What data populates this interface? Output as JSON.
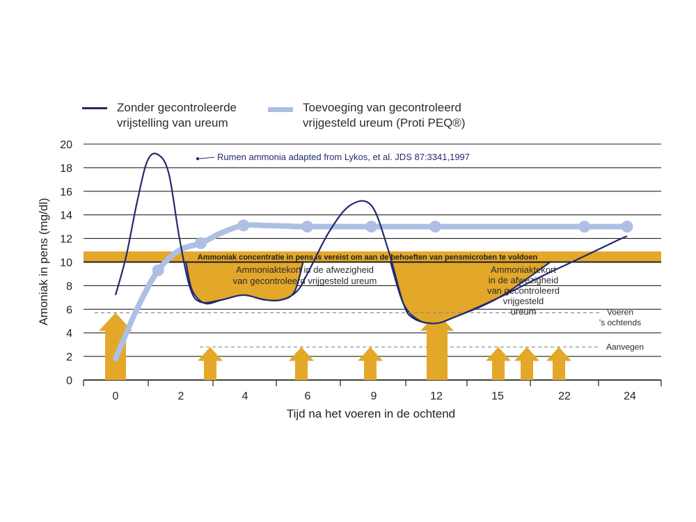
{
  "chart_data": {
    "type": "line",
    "xlabel": "Tijd na het voeren in de ochtend",
    "ylabel": "Amoniak in pens (mg/dl)",
    "ylim": [
      0,
      20
    ],
    "yticks": [
      0,
      2,
      4,
      6,
      8,
      10,
      12,
      14,
      16,
      18,
      20
    ],
    "categories": [
      "0",
      "2",
      "4",
      "6",
      "9",
      "12",
      "15",
      "22",
      "24"
    ],
    "grid": true,
    "legend_position": "top",
    "series": [
      {
        "name": "Zonder gecontroleerde\nvrijstelling van ureum",
        "color": "#232a6b",
        "points": [
          [
            0,
            7.2
          ],
          [
            0.5,
            10.5
          ],
          [
            1,
            15
          ],
          [
            1.5,
            18.6
          ],
          [
            2,
            19.1
          ],
          [
            2.5,
            17.5
          ],
          [
            3,
            12
          ],
          [
            3.5,
            7.8
          ],
          [
            4,
            6.6
          ],
          [
            5,
            6.8
          ],
          [
            6,
            7.2
          ],
          [
            7,
            6.8
          ],
          [
            7.8,
            6.8
          ],
          [
            8.5,
            7.5
          ],
          [
            9,
            9
          ],
          [
            10,
            12.5
          ],
          [
            11,
            14.8
          ],
          [
            12,
            14.8
          ],
          [
            12.8,
            11
          ],
          [
            13.5,
            6.5
          ],
          [
            14,
            5.2
          ],
          [
            15,
            4.8
          ],
          [
            16,
            5.4
          ],
          [
            18,
            7
          ],
          [
            20,
            8.8
          ],
          [
            22,
            10.5
          ],
          [
            23.5,
            11.8
          ],
          [
            24,
            12.2
          ]
        ]
      },
      {
        "name": "Toevoeging van gecontroleerd\nvrijgesteld ureum (Proti PEQ®)",
        "color": "#aebfe4",
        "points": [
          [
            0,
            1.8
          ],
          [
            1,
            6
          ],
          [
            2,
            9.3
          ],
          [
            3,
            11
          ],
          [
            4,
            11.6
          ],
          [
            5,
            12.5
          ],
          [
            6,
            13.1
          ],
          [
            7,
            13.1
          ],
          [
            8,
            13.05
          ],
          [
            9,
            13
          ],
          [
            12,
            13
          ],
          [
            15,
            13
          ],
          [
            22,
            13
          ],
          [
            24,
            13
          ]
        ],
        "markers": [
          2,
          4,
          6,
          9,
          12,
          15,
          22,
          24
        ]
      }
    ],
    "threshold": {
      "value": 10,
      "label": "Ammoniak concentratie in pens is vereist om aan de behoeften van pensmicroben te voldoen",
      "color": "#e3a72a"
    },
    "deficit_regions": [
      {
        "label": "Ammoniaktekort in de afwezigheid\nvan gecontroleerd vrijgesteld ureum"
      },
      {
        "label": "Ammoniaktekort\nin de afwezigheid\nvan gecontroleerd\nvrijgesteld\nureum"
      }
    ],
    "feeding_levels": [
      {
        "label": "Voeren\n's ochtends",
        "value": 5.7
      },
      {
        "label": "Aanvegen",
        "value": 2.8
      }
    ],
    "feeding_arrows": [
      {
        "x": "0",
        "height": 5.7,
        "type": "Voeren 's ochtends"
      },
      {
        "x": "3",
        "height": 2.8,
        "type": "Aanvegen"
      },
      {
        "x": "6",
        "height": 2.8,
        "type": "Aanvegen"
      },
      {
        "x": "9",
        "height": 2.8,
        "type": "Aanvegen"
      },
      {
        "x": "12",
        "height": 5.7,
        "type": "Voeren 's ochtends"
      },
      {
        "x": "15",
        "height": 2.8,
        "type": "Aanvegen"
      },
      {
        "x": "17",
        "height": 2.8,
        "type": "Aanvegen"
      },
      {
        "x": "20",
        "height": 2.8,
        "type": "Aanvegen"
      }
    ],
    "annotation": "Rumen ammonia adapted from Lykos, et al. JDS 87:3341,1997"
  }
}
